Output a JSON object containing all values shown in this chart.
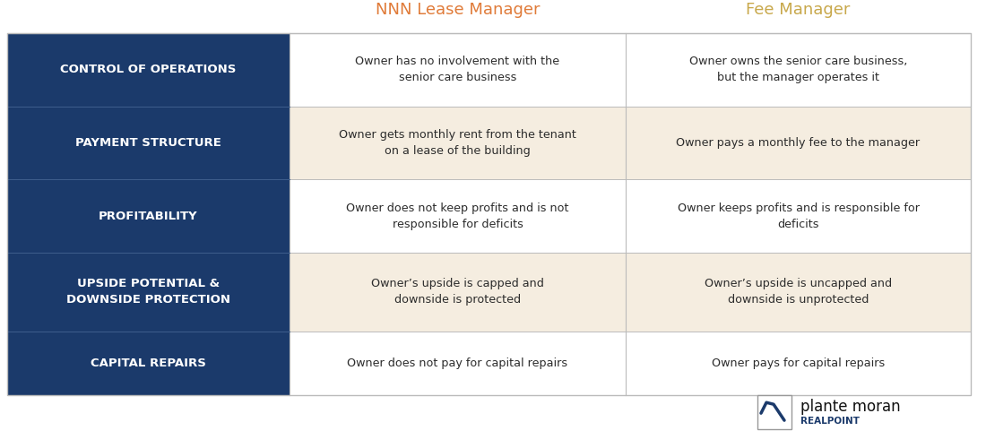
{
  "title_col1": "NNN Lease Manager",
  "title_col2": "Fee Manager",
  "title_col1_color": "#E07B39",
  "title_col2_color": "#C8A84B",
  "header_bg": "#FFFFFF",
  "row_labels": [
    "CONTROL OF OPERATIONS",
    "PAYMENT STRUCTURE",
    "PROFITABILITY",
    "UPSIDE POTENTIAL &\nDOWNSIDE PROTECTION",
    "CAPITAL REPAIRS"
  ],
  "col1_texts": [
    "Owner has no involvement with the\nsenior care business",
    "Owner gets monthly rent from the tenant\non a lease of the building",
    "Owner does not keep profits and is not\nresponsible for deficits",
    "Owner’s upside is capped and\ndownside is protected",
    "Owner does not pay for capital repairs"
  ],
  "col2_texts": [
    "Owner owns the senior care business,\nbut the manager operates it",
    "Owner pays a monthly fee to the manager",
    "Owner keeps profits and is responsible for\ndeficits",
    "Owner’s upside is uncapped and\ndownside is unprotected",
    "Owner pays for capital repairs"
  ],
  "label_bg_color": "#1B3A6B",
  "label_text_color": "#FFFFFF",
  "odd_row_bg": "#FFFFFF",
  "even_row_bg": "#F5EDE0",
  "content_text_color": "#2C2C2C",
  "bg_color": "#FFFFFF",
  "logo_text": "plante moran",
  "logo_sub": "REALPOINT",
  "border_color": "#BBBBBB"
}
